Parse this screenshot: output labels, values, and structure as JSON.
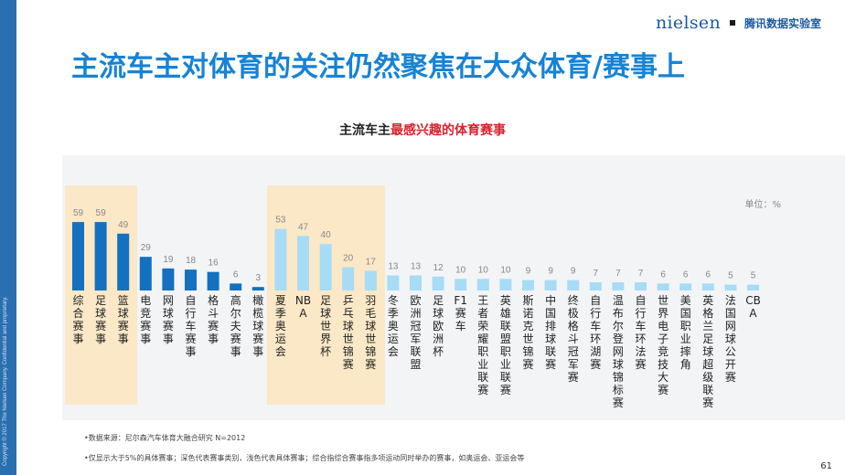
{
  "header": {
    "brand_nielsen": "nielsen",
    "brand_tencent": "腾讯数据实验室",
    "side_text": "Copyright © 2017 The Nielsen Company. Confidential and proprietary."
  },
  "slide_title": "主流车主对体育的关注仍然聚焦在大众体育/赛事上",
  "chart_title_prefix": "主流车主",
  "chart_title_highlight": "最感兴趣的体育赛事",
  "unit_label": "单位：%",
  "footnotes": [
    "•数据来源：尼尔森汽车体育大融合研究 N=2012",
    "•仅显示大于5%的具体赛事；深色代表赛事类别，浅色代表具体赛事；综合指综合赛事指多项运动同时举办的赛事，如奥运会、亚运会等"
  ],
  "page_number": "61",
  "colors": {
    "dark_bar": "#1470c0",
    "light_bar": "#a7dcf6",
    "value_text": "#888888",
    "label_text": "#222222",
    "highlight_band": "#fbe8c7",
    "title_blue": "#1783d4"
  },
  "chart_data": {
    "type": "bar",
    "title": "主流车主最感兴趣的体育赛事",
    "unit": "单位：%",
    "ylim": [
      0,
      59
    ],
    "categories": [
      "综合赛事",
      "足球赛事",
      "篮球赛事",
      "电竞赛事",
      "网球赛事",
      "自行车赛事",
      "格斗赛事",
      "高尔夫赛事",
      "橄榄球赛事",
      "夏季奥运会",
      "NBA",
      "足球世界杯",
      "乒乓球世锦赛",
      "羽毛球世锦赛",
      "冬季奥运会",
      "欧洲冠军联盟",
      "足球欧洲杯",
      "F1赛车",
      "王者荣耀职业联赛",
      "英雄联盟职业联赛",
      "斯诺克世锦赛",
      "中国排球联赛",
      "终极格斗冠军赛",
      "自行车环湖赛",
      "温布尔登网球锦标赛",
      "自行车环法赛",
      "世界电子竞技大赛",
      "美国职业摔角",
      "英格兰足球超级联赛",
      "法国网球公开赛",
      "CBA"
    ],
    "values": [
      59,
      59,
      49,
      29,
      19,
      18,
      16,
      6,
      3,
      53,
      47,
      40,
      20,
      17,
      13,
      13,
      12,
      10,
      10,
      10,
      9,
      9,
      9,
      7,
      7,
      7,
      6,
      6,
      6,
      5,
      5
    ],
    "bar_type": [
      "category",
      "category",
      "category",
      "category",
      "category",
      "category",
      "category",
      "category",
      "category",
      "event",
      "event",
      "event",
      "event",
      "event",
      "event",
      "event",
      "event",
      "event",
      "event",
      "event",
      "event",
      "event",
      "event",
      "event",
      "event",
      "event",
      "event",
      "event",
      "event",
      "event",
      "event"
    ],
    "label_lines": [
      [
        "综",
        "合",
        "赛",
        "事"
      ],
      [
        "足",
        "球",
        "赛",
        "事"
      ],
      [
        "篮",
        "球",
        "赛",
        "事"
      ],
      [
        "电",
        "竞",
        "赛",
        "事"
      ],
      [
        "网",
        "球",
        "赛",
        "事"
      ],
      [
        "自",
        "行",
        "车",
        "赛",
        "事"
      ],
      [
        "格",
        "斗",
        "赛",
        "事"
      ],
      [
        "高",
        "尔",
        "夫",
        "赛",
        "事"
      ],
      [
        "橄",
        "榄",
        "球",
        "赛",
        "事"
      ],
      [
        "夏",
        "季",
        "奥",
        "运",
        "会"
      ],
      [
        "NB",
        "A"
      ],
      [
        "足",
        "球",
        "世",
        "界",
        "杯"
      ],
      [
        "乒",
        "乓",
        "球",
        "世",
        "锦",
        "赛"
      ],
      [
        "羽",
        "毛",
        "球",
        "世",
        "锦",
        "赛"
      ],
      [
        "冬",
        "季",
        "奥",
        "运",
        "会"
      ],
      [
        "欧",
        "洲",
        "冠",
        "军",
        "联",
        "盟"
      ],
      [
        "足",
        "球",
        "欧",
        "洲",
        "杯"
      ],
      [
        "F1",
        "赛",
        "车"
      ],
      [
        "王",
        "者",
        "荣",
        "耀",
        "职",
        "业",
        "联",
        "赛"
      ],
      [
        "英",
        "雄",
        "联",
        "盟",
        "职",
        "业",
        "联",
        "赛"
      ],
      [
        "斯",
        "诺",
        "克",
        "世",
        "锦",
        "赛"
      ],
      [
        "中",
        "国",
        "排",
        "球",
        "联",
        "赛"
      ],
      [
        "终",
        "极",
        "格",
        "斗",
        "冠",
        "军",
        "赛"
      ],
      [
        "自",
        "行",
        "车",
        "环",
        "湖",
        "赛"
      ],
      [
        "温",
        "布",
        "尔",
        "登",
        "网",
        "球",
        "锦",
        "标",
        "赛"
      ],
      [
        "自",
        "行",
        "车",
        "环",
        "法",
        "赛"
      ],
      [
        "世",
        "界",
        "电",
        "子",
        "竞",
        "技",
        "大",
        "赛"
      ],
      [
        "美",
        "国",
        "职",
        "业",
        "摔",
        "角"
      ],
      [
        "英",
        "格",
        "兰",
        "足",
        "球",
        "超",
        "级",
        "联",
        "赛"
      ],
      [
        "法",
        "国",
        "网",
        "球",
        "公",
        "开",
        "赛"
      ],
      [
        "CB",
        "A"
      ]
    ],
    "highlight_groups": [
      [
        0,
        2
      ],
      [
        9,
        13
      ]
    ]
  }
}
